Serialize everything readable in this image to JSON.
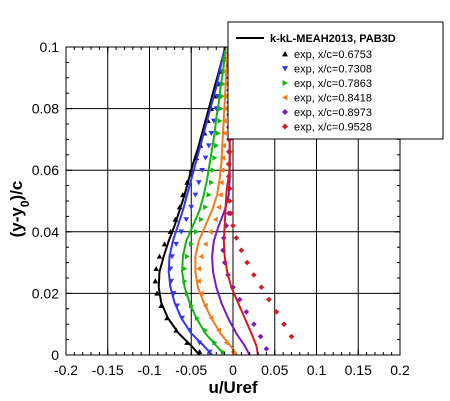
{
  "chart_data": {
    "type": "line",
    "xlabel": "u/Uref",
    "ylabel": "(y-y0)/c",
    "ylabel_main": "(y-y",
    "ylabel_sub": "0",
    "ylabel_tail": ")/c",
    "xlim": [
      -0.2,
      0.2
    ],
    "ylim": [
      0,
      0.1
    ],
    "xticks": [
      "-0.2",
      "-0.15",
      "-0.1",
      "-0.05",
      "0",
      "0.05",
      "0.1",
      "0.15",
      "0.2"
    ],
    "yticks": [
      "0",
      "0.02",
      "0.04",
      "0.06",
      "0.08",
      "0.1"
    ],
    "grid": true,
    "legend_position": "top-right",
    "legend": {
      "line_label": "k-kL-MEAH2013, PAB3D",
      "entries": [
        "exp, x/c=0.6753",
        "exp, x/c=0.7308",
        "exp, x/c=0.7863",
        "exp, x/c=0.8418",
        "exp, x/c=0.8973",
        "exp, x/c=0.9528"
      ]
    },
    "series": [
      {
        "color": "#000000",
        "marker": "triangle-up",
        "line": [
          [
            -0.04,
            0
          ],
          [
            -0.05,
            0.003
          ],
          [
            -0.065,
            0.007
          ],
          [
            -0.078,
            0.012
          ],
          [
            -0.086,
            0.017
          ],
          [
            -0.089,
            0.022
          ],
          [
            -0.088,
            0.027
          ],
          [
            -0.083,
            0.032
          ],
          [
            -0.077,
            0.037
          ],
          [
            -0.07,
            0.042
          ],
          [
            -0.064,
            0.047
          ],
          [
            -0.058,
            0.052
          ],
          [
            -0.053,
            0.057
          ],
          [
            -0.048,
            0.062
          ],
          [
            -0.042,
            0.067
          ],
          [
            -0.037,
            0.072
          ],
          [
            -0.032,
            0.077
          ],
          [
            -0.027,
            0.082
          ],
          [
            -0.022,
            0.087
          ],
          [
            -0.017,
            0.092
          ],
          [
            -0.012,
            0.097
          ],
          [
            -0.009,
            0.1
          ]
        ],
        "points": [
          [
            -0.04,
            0.001
          ],
          [
            -0.055,
            0.004
          ],
          [
            -0.068,
            0.008
          ],
          [
            -0.079,
            0.012
          ],
          [
            -0.086,
            0.016
          ],
          [
            -0.091,
            0.02
          ],
          [
            -0.093,
            0.024
          ],
          [
            -0.092,
            0.028
          ],
          [
            -0.088,
            0.032
          ],
          [
            -0.082,
            0.036
          ],
          [
            -0.075,
            0.04
          ],
          [
            -0.069,
            0.044
          ],
          [
            -0.064,
            0.048
          ],
          [
            -0.06,
            0.052
          ],
          [
            -0.055,
            0.056
          ],
          [
            -0.05,
            0.06
          ],
          [
            -0.044,
            0.064
          ],
          [
            -0.039,
            0.068
          ],
          [
            -0.034,
            0.072
          ],
          [
            -0.03,
            0.076
          ],
          [
            -0.026,
            0.08
          ],
          [
            -0.022,
            0.084
          ],
          [
            -0.019,
            0.088
          ],
          [
            -0.015,
            0.092
          ],
          [
            -0.012,
            0.096
          ]
        ]
      },
      {
        "color": "#3535ee",
        "marker": "triangle-down",
        "line": [
          [
            -0.025,
            0
          ],
          [
            -0.035,
            0.003
          ],
          [
            -0.05,
            0.007
          ],
          [
            -0.062,
            0.012
          ],
          [
            -0.07,
            0.017
          ],
          [
            -0.075,
            0.022
          ],
          [
            -0.077,
            0.027
          ],
          [
            -0.076,
            0.032
          ],
          [
            -0.072,
            0.037
          ],
          [
            -0.066,
            0.042
          ],
          [
            -0.06,
            0.047
          ],
          [
            -0.055,
            0.052
          ],
          [
            -0.05,
            0.057
          ],
          [
            -0.045,
            0.062
          ],
          [
            -0.04,
            0.067
          ],
          [
            -0.035,
            0.072
          ],
          [
            -0.03,
            0.077
          ],
          [
            -0.025,
            0.082
          ],
          [
            -0.02,
            0.087
          ],
          [
            -0.016,
            0.092
          ],
          [
            -0.012,
            0.097
          ],
          [
            -0.01,
            0.1
          ]
        ],
        "points": [
          [
            -0.028,
            0.001
          ],
          [
            -0.04,
            0.004
          ],
          [
            -0.052,
            0.008
          ],
          [
            -0.061,
            0.012
          ],
          [
            -0.067,
            0.016
          ],
          [
            -0.071,
            0.02
          ],
          [
            -0.074,
            0.024
          ],
          [
            -0.075,
            0.028
          ],
          [
            -0.073,
            0.032
          ],
          [
            -0.068,
            0.036
          ],
          [
            -0.062,
            0.04
          ],
          [
            -0.056,
            0.044
          ],
          [
            -0.05,
            0.048
          ],
          [
            -0.045,
            0.052
          ],
          [
            -0.041,
            0.056
          ],
          [
            -0.037,
            0.06
          ],
          [
            -0.033,
            0.064
          ],
          [
            -0.029,
            0.068
          ],
          [
            -0.026,
            0.072
          ],
          [
            -0.023,
            0.076
          ],
          [
            -0.02,
            0.08
          ],
          [
            -0.018,
            0.084
          ],
          [
            -0.016,
            0.088
          ],
          [
            -0.013,
            0.092
          ],
          [
            -0.011,
            0.096
          ]
        ]
      },
      {
        "color": "#12b512",
        "marker": "triangle-right",
        "line": [
          [
            -0.01,
            0
          ],
          [
            -0.02,
            0.003
          ],
          [
            -0.033,
            0.007
          ],
          [
            -0.044,
            0.012
          ],
          [
            -0.052,
            0.017
          ],
          [
            -0.058,
            0.022
          ],
          [
            -0.061,
            0.027
          ],
          [
            -0.06,
            0.032
          ],
          [
            -0.056,
            0.037
          ],
          [
            -0.048,
            0.042
          ],
          [
            -0.04,
            0.047
          ],
          [
            -0.035,
            0.052
          ],
          [
            -0.031,
            0.057
          ],
          [
            -0.028,
            0.062
          ],
          [
            -0.025,
            0.067
          ],
          [
            -0.022,
            0.072
          ],
          [
            -0.02,
            0.077
          ],
          [
            -0.017,
            0.082
          ],
          [
            -0.015,
            0.087
          ],
          [
            -0.012,
            0.092
          ],
          [
            -0.01,
            0.097
          ],
          [
            -0.009,
            0.1
          ]
        ],
        "points": [
          [
            -0.012,
            0.001
          ],
          [
            -0.022,
            0.004
          ],
          [
            -0.033,
            0.008
          ],
          [
            -0.043,
            0.012
          ],
          [
            -0.05,
            0.016
          ],
          [
            -0.055,
            0.02
          ],
          [
            -0.058,
            0.024
          ],
          [
            -0.058,
            0.028
          ],
          [
            -0.055,
            0.032
          ],
          [
            -0.05,
            0.036
          ],
          [
            -0.044,
            0.04
          ],
          [
            -0.038,
            0.044
          ],
          [
            -0.033,
            0.048
          ],
          [
            -0.029,
            0.052
          ],
          [
            -0.026,
            0.056
          ],
          [
            -0.024,
            0.06
          ],
          [
            -0.022,
            0.064
          ],
          [
            -0.02,
            0.068
          ],
          [
            -0.018,
            0.072
          ],
          [
            -0.016,
            0.076
          ],
          [
            -0.015,
            0.08
          ],
          [
            -0.013,
            0.084
          ],
          [
            -0.012,
            0.088
          ],
          [
            -0.011,
            0.092
          ],
          [
            -0.01,
            0.096
          ]
        ]
      },
      {
        "color": "#f07c1c",
        "marker": "triangle-left",
        "line": [
          [
            0.005,
            0
          ],
          [
            -0.003,
            0.003
          ],
          [
            -0.015,
            0.007
          ],
          [
            -0.026,
            0.012
          ],
          [
            -0.035,
            0.017
          ],
          [
            -0.042,
            0.022
          ],
          [
            -0.045,
            0.027
          ],
          [
            -0.045,
            0.032
          ],
          [
            -0.041,
            0.037
          ],
          [
            -0.033,
            0.042
          ],
          [
            -0.025,
            0.047
          ],
          [
            -0.019,
            0.052
          ],
          [
            -0.016,
            0.057
          ],
          [
            -0.014,
            0.062
          ],
          [
            -0.013,
            0.067
          ],
          [
            -0.012,
            0.072
          ],
          [
            -0.011,
            0.077
          ],
          [
            -0.01,
            0.082
          ],
          [
            -0.009,
            0.087
          ],
          [
            -0.008,
            0.092
          ],
          [
            -0.007,
            0.097
          ],
          [
            -0.006,
            0.1
          ]
        ],
        "points": [
          [
            0.0,
            0.001
          ],
          [
            -0.008,
            0.004
          ],
          [
            -0.017,
            0.008
          ],
          [
            -0.026,
            0.012
          ],
          [
            -0.033,
            0.016
          ],
          [
            -0.038,
            0.02
          ],
          [
            -0.041,
            0.024
          ],
          [
            -0.041,
            0.028
          ],
          [
            -0.038,
            0.032
          ],
          [
            -0.033,
            0.036
          ],
          [
            -0.027,
            0.04
          ],
          [
            -0.021,
            0.044
          ],
          [
            -0.017,
            0.048
          ],
          [
            -0.015,
            0.052
          ],
          [
            -0.014,
            0.056
          ],
          [
            -0.013,
            0.06
          ],
          [
            -0.012,
            0.064
          ],
          [
            -0.011,
            0.068
          ],
          [
            -0.01,
            0.072
          ],
          [
            -0.01,
            0.076
          ],
          [
            -0.009,
            0.08
          ],
          [
            -0.009,
            0.084
          ],
          [
            -0.008,
            0.088
          ],
          [
            -0.008,
            0.092
          ],
          [
            -0.007,
            0.096
          ]
        ]
      },
      {
        "color": "#7a19c2",
        "marker": "diamond",
        "line": [
          [
            0.02,
            0
          ],
          [
            0.014,
            0.003
          ],
          [
            0.004,
            0.007
          ],
          [
            -0.006,
            0.012
          ],
          [
            -0.014,
            0.017
          ],
          [
            -0.02,
            0.022
          ],
          [
            -0.024,
            0.027
          ],
          [
            -0.025,
            0.032
          ],
          [
            -0.023,
            0.037
          ],
          [
            -0.017,
            0.042
          ],
          [
            -0.01,
            0.047
          ],
          [
            -0.005,
            0.052
          ],
          [
            -0.004,
            0.057
          ],
          [
            -0.004,
            0.062
          ],
          [
            -0.004,
            0.067
          ],
          [
            -0.004,
            0.072
          ],
          [
            -0.004,
            0.077
          ],
          [
            -0.004,
            0.082
          ],
          [
            -0.004,
            0.087
          ],
          [
            -0.004,
            0.092
          ],
          [
            -0.004,
            0.097
          ],
          [
            -0.004,
            0.1
          ]
        ],
        "points": [
          [
            0.04,
            0.002
          ],
          [
            0.033,
            0.006
          ],
          [
            0.025,
            0.01
          ],
          [
            0.016,
            0.014
          ],
          [
            0.008,
            0.018
          ],
          [
            0.0,
            0.022
          ],
          [
            -0.006,
            0.026
          ],
          [
            -0.01,
            0.03
          ],
          [
            -0.012,
            0.034
          ],
          [
            -0.011,
            0.038
          ],
          [
            -0.008,
            0.042
          ],
          [
            -0.005,
            0.046
          ],
          [
            -0.004,
            0.05
          ],
          [
            -0.004,
            0.054
          ],
          [
            -0.005,
            0.058
          ],
          [
            -0.005,
            0.062
          ],
          [
            -0.005,
            0.066
          ],
          [
            -0.005,
            0.07
          ],
          [
            -0.005,
            0.074
          ],
          [
            -0.005,
            0.078
          ],
          [
            -0.005,
            0.082
          ],
          [
            -0.005,
            0.086
          ],
          [
            -0.005,
            0.09
          ],
          [
            -0.005,
            0.094
          ],
          [
            -0.005,
            0.098
          ]
        ]
      },
      {
        "color": "#d41b1b",
        "marker": "diamond",
        "line": [
          [
            0.03,
            0
          ],
          [
            0.028,
            0.003
          ],
          [
            0.022,
            0.007
          ],
          [
            0.014,
            0.012
          ],
          [
            0.006,
            0.017
          ],
          [
            -0.002,
            0.022
          ],
          [
            -0.007,
            0.027
          ],
          [
            -0.01,
            0.032
          ],
          [
            -0.011,
            0.037
          ],
          [
            -0.01,
            0.042
          ],
          [
            -0.009,
            0.047
          ],
          [
            -0.008,
            0.052
          ],
          [
            -0.007,
            0.055
          ],
          [
            -0.005,
            0.058
          ],
          [
            -0.004,
            0.061
          ],
          [
            -0.004,
            0.064
          ],
          [
            -0.004,
            0.067
          ],
          [
            -0.004,
            0.072
          ],
          [
            -0.004,
            0.077
          ],
          [
            -0.003,
            0.082
          ],
          [
            -0.003,
            0.087
          ],
          [
            -0.003,
            0.092
          ],
          [
            -0.003,
            0.097
          ],
          [
            -0.003,
            0.1
          ]
        ],
        "points": [
          [
            0.07,
            0.006
          ],
          [
            0.061,
            0.01
          ],
          [
            0.052,
            0.014
          ],
          [
            0.043,
            0.018
          ],
          [
            0.034,
            0.022
          ],
          [
            0.025,
            0.026
          ],
          [
            0.017,
            0.03
          ],
          [
            0.01,
            0.034
          ],
          [
            0.004,
            0.038
          ],
          [
            0.0,
            0.042
          ],
          [
            -0.003,
            0.046
          ],
          [
            -0.004,
            0.05
          ],
          [
            -0.005,
            0.054
          ],
          [
            -0.005,
            0.058
          ],
          [
            -0.005,
            0.062
          ],
          [
            -0.004,
            0.066
          ],
          [
            -0.004,
            0.07
          ],
          [
            -0.004,
            0.074
          ],
          [
            -0.004,
            0.078
          ],
          [
            -0.004,
            0.082
          ],
          [
            -0.004,
            0.086
          ],
          [
            -0.004,
            0.09
          ],
          [
            -0.004,
            0.094
          ],
          [
            -0.004,
            0.098
          ]
        ]
      }
    ]
  }
}
